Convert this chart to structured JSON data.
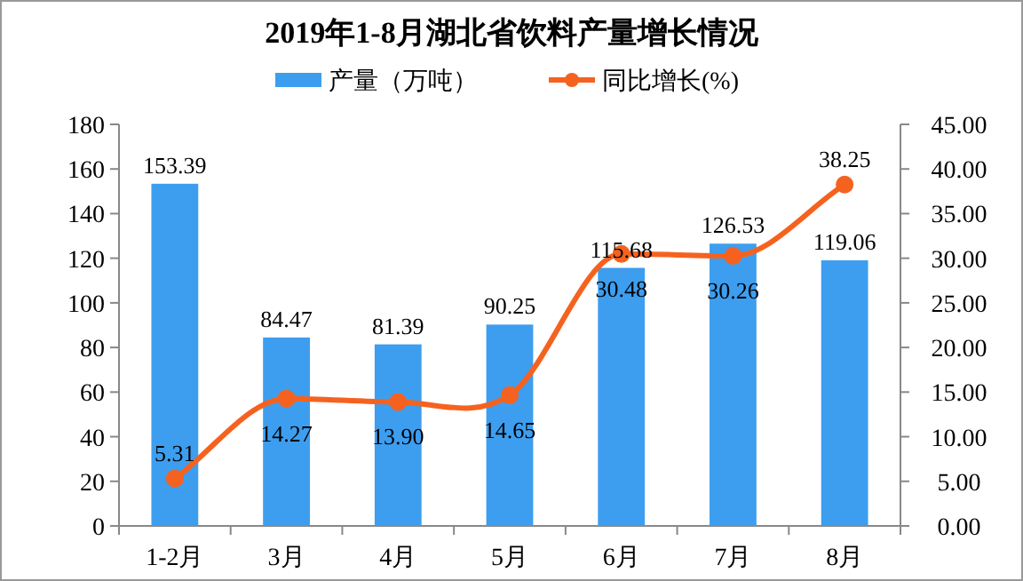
{
  "chart_data": {
    "type": "bar",
    "title": "2019年1-8月湖北省饮料产量增长情况",
    "categories": [
      "1-2月",
      "3月",
      "4月",
      "5月",
      "6月",
      "7月",
      "8月"
    ],
    "series": [
      {
        "name": "产量（万吨）",
        "color": "#3d9ef0",
        "values": [
          153.39,
          84.47,
          81.39,
          90.25,
          115.68,
          126.53,
          119.06
        ]
      },
      {
        "name": "同比增长(%)",
        "type": "line",
        "axis": "y2",
        "color": "#f5621f",
        "values": [
          5.31,
          14.27,
          13.9,
          14.65,
          30.48,
          30.26,
          38.25
        ],
        "value_labels": [
          "5.31",
          "14.27",
          "13.90",
          "14.65",
          "30.48",
          "30.26",
          "38.25"
        ]
      }
    ],
    "ylim": [
      0,
      180
    ],
    "yticks": [
      0,
      20,
      40,
      60,
      80,
      100,
      120,
      140,
      160,
      180
    ],
    "y2lim": [
      0,
      45
    ],
    "y2ticks": [
      {
        "value": 0,
        "label": "0.00"
      },
      {
        "value": 5,
        "label": "5.00"
      },
      {
        "value": 10,
        "label": "10.00"
      },
      {
        "value": 15,
        "label": "15.00"
      },
      {
        "value": 20,
        "label": "20.00"
      },
      {
        "value": 25,
        "label": "25.00"
      },
      {
        "value": 30,
        "label": "30.00"
      },
      {
        "value": 35,
        "label": "35.00"
      },
      {
        "value": 40,
        "label": "40.00"
      },
      {
        "value": 45,
        "label": "45.00"
      }
    ],
    "data_labels": true,
    "legend": "top",
    "marker": "circle",
    "line_style": "solid",
    "grid": false
  }
}
